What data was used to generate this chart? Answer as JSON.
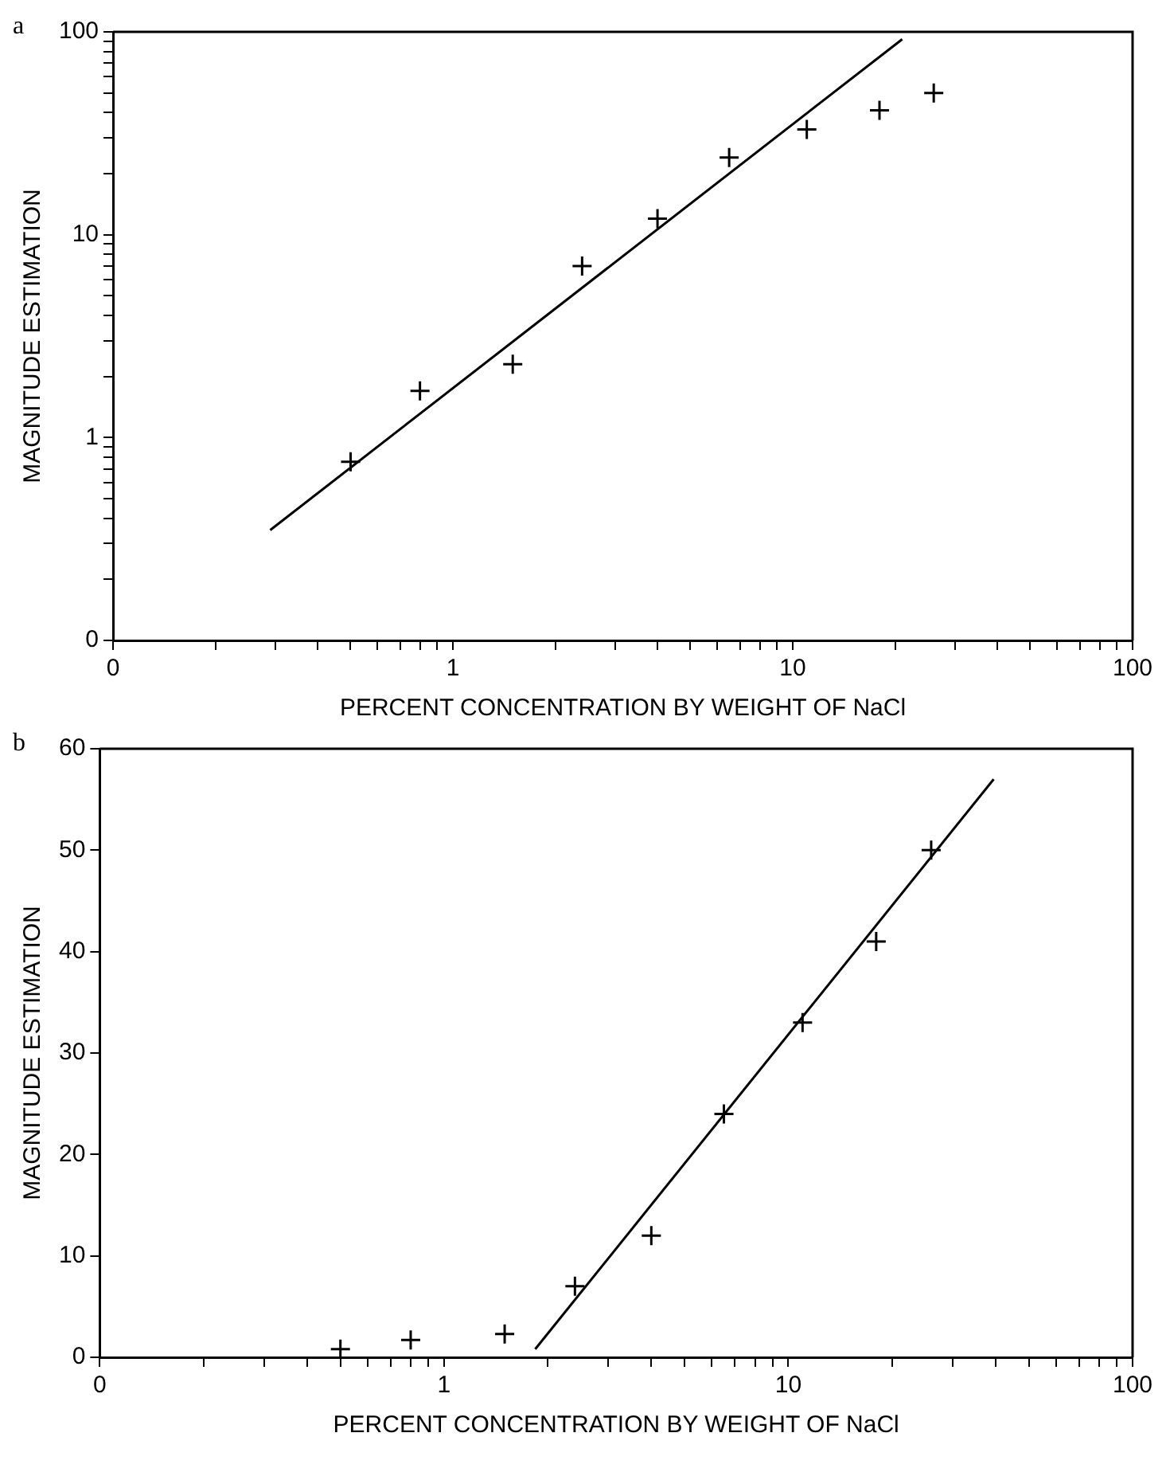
{
  "chart_data": [
    {
      "type": "scatter",
      "annotations": [
        "a"
      ],
      "xlabel": "PERCENT CONCENTRATION BY WEIGHT OF NaCl",
      "ylabel": "MAGNITUDE ESTIMATION",
      "log": "xy",
      "marker": "cross",
      "xlim": [
        0.1,
        100
      ],
      "ylim": [
        0.1,
        100
      ],
      "xticks": [
        {
          "value": 0.1,
          "label": "0"
        },
        {
          "value": 0.2,
          "label": null
        },
        {
          "value": 0.3,
          "label": null
        },
        {
          "value": 0.4,
          "label": null
        },
        {
          "value": 0.5,
          "label": null
        },
        {
          "value": 0.6,
          "label": null
        },
        {
          "value": 0.7,
          "label": null
        },
        {
          "value": 0.8,
          "label": null
        },
        {
          "value": 0.9,
          "label": null
        },
        1,
        {
          "value": 2,
          "label": null
        },
        {
          "value": 3,
          "label": null
        },
        {
          "value": 4,
          "label": null
        },
        {
          "value": 5,
          "label": null
        },
        {
          "value": 6,
          "label": null
        },
        {
          "value": 7,
          "label": null
        },
        {
          "value": 8,
          "label": null
        },
        {
          "value": 9,
          "label": null
        },
        10,
        {
          "value": 20,
          "label": null
        },
        {
          "value": 30,
          "label": null
        },
        {
          "value": 40,
          "label": null
        },
        {
          "value": 50,
          "label": null
        },
        {
          "value": 60,
          "label": null
        },
        {
          "value": 70,
          "label": null
        },
        {
          "value": 80,
          "label": null
        },
        {
          "value": 90,
          "label": null
        },
        100
      ],
      "yticks": [
        {
          "value": 0.1,
          "label": "0"
        },
        {
          "value": 0.2,
          "label": null
        },
        {
          "value": 0.3,
          "label": null
        },
        {
          "value": 0.4,
          "label": null
        },
        {
          "value": 0.5,
          "label": null
        },
        {
          "value": 0.6,
          "label": null
        },
        {
          "value": 0.7,
          "label": null
        },
        {
          "value": 0.8,
          "label": null
        },
        {
          "value": 0.9,
          "label": null
        },
        1,
        {
          "value": 2,
          "label": null
        },
        {
          "value": 3,
          "label": null
        },
        {
          "value": 4,
          "label": null
        },
        {
          "value": 5,
          "label": null
        },
        {
          "value": 6,
          "label": null
        },
        {
          "value": 7,
          "label": null
        },
        {
          "value": 8,
          "label": null
        },
        {
          "value": 9,
          "label": null
        },
        10,
        {
          "value": 20,
          "label": null
        },
        {
          "value": 30,
          "label": null
        },
        {
          "value": 40,
          "label": null
        },
        {
          "value": 50,
          "label": null
        },
        {
          "value": 60,
          "label": null
        },
        {
          "value": 70,
          "label": null
        },
        {
          "value": 80,
          "label": null
        },
        {
          "value": 90,
          "label": null
        },
        100
      ],
      "series": [
        {
          "color": "#000000",
          "x": [
            0.5,
            0.8,
            1.5,
            2.4,
            4,
            6.5,
            11,
            18,
            26
          ],
          "values": [
            0.76,
            1.7,
            2.3,
            7,
            12,
            24,
            33,
            41,
            50
          ]
        },
        {
          "type": "line",
          "marker": "none",
          "color": "#000000",
          "x": [
            0.29,
            21
          ],
          "values": [
            0.35,
            92
          ]
        }
      ]
    },
    {
      "type": "scatter",
      "annotations": [
        "b"
      ],
      "xlabel": "PERCENT CONCENTRATION BY WEIGHT OF NaCl",
      "ylabel": "MAGNITUDE ESTIMATION",
      "log": "x",
      "marker": "cross",
      "xlim": [
        0.1,
        100
      ],
      "ylim": [
        0,
        60
      ],
      "xticks": [
        {
          "value": 0.1,
          "label": "0"
        },
        {
          "value": 0.2,
          "label": null
        },
        {
          "value": 0.3,
          "label": null
        },
        {
          "value": 0.4,
          "label": null
        },
        {
          "value": 0.5,
          "label": null
        },
        {
          "value": 0.6,
          "label": null
        },
        {
          "value": 0.7,
          "label": null
        },
        {
          "value": 0.8,
          "label": null
        },
        {
          "value": 0.9,
          "label": null
        },
        1,
        {
          "value": 2,
          "label": null
        },
        {
          "value": 3,
          "label": null
        },
        {
          "value": 4,
          "label": null
        },
        {
          "value": 5,
          "label": null
        },
        {
          "value": 6,
          "label": null
        },
        {
          "value": 7,
          "label": null
        },
        {
          "value": 8,
          "label": null
        },
        {
          "value": 9,
          "label": null
        },
        10,
        {
          "value": 20,
          "label": null
        },
        {
          "value": 30,
          "label": null
        },
        {
          "value": 40,
          "label": null
        },
        {
          "value": 50,
          "label": null
        },
        {
          "value": 60,
          "label": null
        },
        {
          "value": 70,
          "label": null
        },
        {
          "value": 80,
          "label": null
        },
        {
          "value": 90,
          "label": null
        },
        100
      ],
      "yticks": [
        0,
        10,
        20,
        30,
        40,
        50,
        60
      ],
      "series": [
        {
          "color": "#000000",
          "x": [
            0.5,
            0.8,
            1.5,
            2.4,
            4,
            6.5,
            11,
            18,
            26
          ],
          "values": [
            0.8,
            1.7,
            2.3,
            7,
            12,
            24,
            33,
            41,
            50
          ]
        },
        {
          "type": "line",
          "marker": "none",
          "color": "#000000",
          "x": [
            1.84,
            39.5
          ],
          "values": [
            0.8,
            57
          ]
        }
      ]
    }
  ]
}
